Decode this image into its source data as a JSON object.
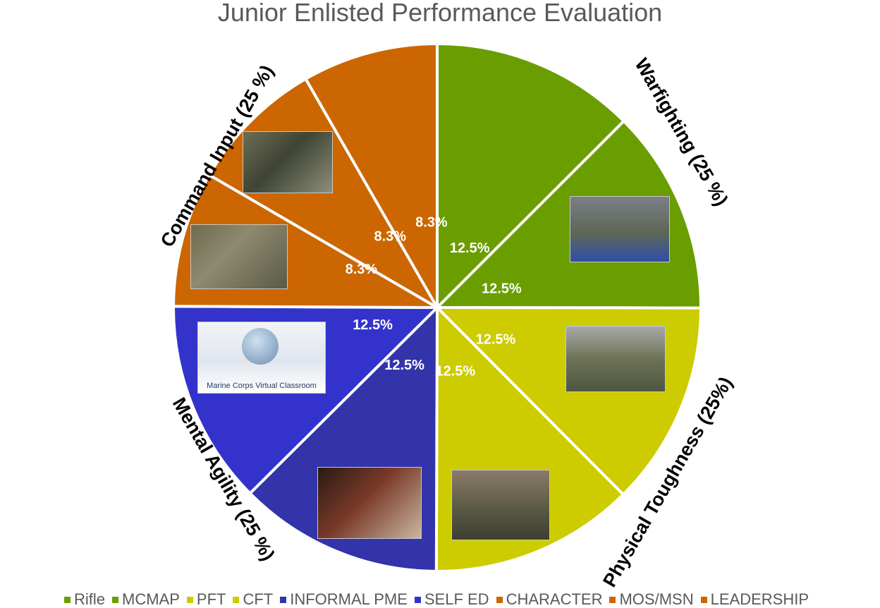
{
  "chart_data": {
    "type": "pie",
    "title": "Junior Enlisted Performance Evaluation",
    "slices": [
      {
        "name": "Rifle",
        "value": 12.5,
        "label": "12.5%",
        "color": "#6a9e00"
      },
      {
        "name": "MCMAP",
        "value": 12.5,
        "label": "12.5%",
        "color": "#6a9e00"
      },
      {
        "name": "PFT",
        "value": 12.5,
        "label": "12.5%",
        "color": "#cccc00"
      },
      {
        "name": "CFT",
        "value": 12.5,
        "label": "12.5%",
        "color": "#cccc00"
      },
      {
        "name": "INFORMAL PME",
        "value": 12.5,
        "label": "12.5%",
        "color": "#3333aa"
      },
      {
        "name": "SELF ED",
        "value": 12.5,
        "label": "12.5%",
        "color": "#3333cc"
      },
      {
        "name": "CHARACTER",
        "value": 8.3,
        "label": "8.3%",
        "color": "#cc6600"
      },
      {
        "name": "MOS/MSN",
        "value": 8.3,
        "label": "8.3%",
        "color": "#cc6600"
      },
      {
        "name": "LEADERSHIP",
        "value": 8.3,
        "label": "8.3%",
        "color": "#cc6600"
      }
    ],
    "groups": [
      {
        "label": "Warfighting (25 %)"
      },
      {
        "label": "Physical Toughness (25%)"
      },
      {
        "label": "Mental Agility (25 %)"
      },
      {
        "label": "Command Input (25 %)"
      }
    ],
    "legend_position": "bottom"
  },
  "photos": {
    "classroom_caption": "Marine Corps Virtual Classroom"
  }
}
